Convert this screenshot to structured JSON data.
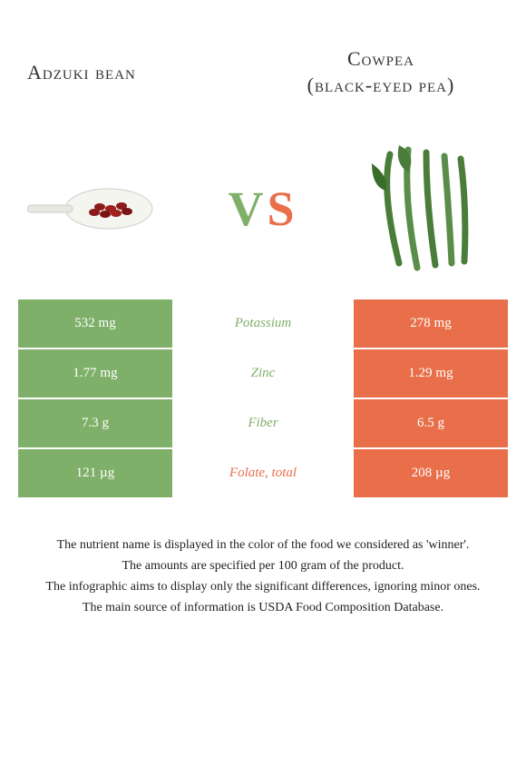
{
  "header": {
    "left_title": "Adzuki bean",
    "right_title_line1": "Cowpea",
    "right_title_line2": "(black-eyed pea)"
  },
  "vs": {
    "v": "V",
    "s": "S"
  },
  "colors": {
    "left": "#7fb069",
    "right": "#e86f4a",
    "bg": "#ffffff",
    "text": "#333333"
  },
  "table": {
    "rows": [
      {
        "left": "532 mg",
        "mid": "Potassium",
        "right": "278 mg",
        "winner": "left"
      },
      {
        "left": "1.77 mg",
        "mid": "Zinc",
        "right": "1.29 mg",
        "winner": "left"
      },
      {
        "left": "7.3 g",
        "mid": "Fiber",
        "right": "6.5 g",
        "winner": "left"
      },
      {
        "left": "121 µg",
        "mid": "Folate, total",
        "right": "208 µg",
        "winner": "right"
      }
    ]
  },
  "footnotes": [
    "The nutrient name is displayed in the color of the food we considered as 'winner'.",
    "The amounts are specified per 100 gram of the product.",
    "The infographic aims to display only the significant differences, ignoring minor ones.",
    "The main source of information is USDA Food Composition Database."
  ]
}
